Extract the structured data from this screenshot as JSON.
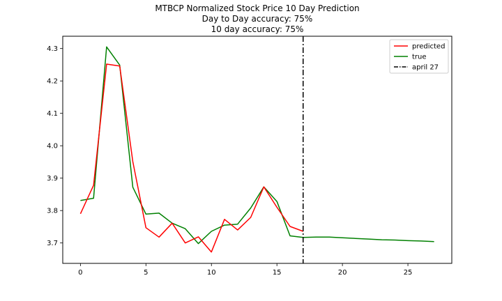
{
  "chart_data": {
    "type": "line",
    "title_lines": [
      "MTBCP Normalized Stock Price 10 Day Prediction",
      "Day to Day accuracy: 75%",
      "10 day accuracy: 75%"
    ],
    "xlabel": "",
    "ylabel": "",
    "xlim": [
      -1.35,
      28.35
    ],
    "ylim": [
      3.637,
      4.338
    ],
    "xticks": [
      0,
      5,
      10,
      15,
      20,
      25
    ],
    "yticks": [
      3.7,
      3.8,
      3.9,
      4.0,
      4.1,
      4.2,
      4.3
    ],
    "grid": false,
    "legend_position": "top-right",
    "series": [
      {
        "name": "predicted",
        "color": "#ff0000",
        "x": [
          0,
          1,
          2,
          3,
          4,
          5,
          6,
          7,
          8,
          9,
          10,
          11,
          12,
          13,
          14,
          15,
          16,
          17
        ],
        "y": [
          3.79,
          3.878,
          4.252,
          4.246,
          3.951,
          3.747,
          3.718,
          3.761,
          3.7,
          3.719,
          3.672,
          3.773,
          3.74,
          3.779,
          3.873,
          3.81,
          3.751,
          3.736
        ]
      },
      {
        "name": "true",
        "color": "#008000",
        "x": [
          0,
          1,
          2,
          3,
          4,
          5,
          6,
          7,
          8,
          9,
          10,
          11,
          12,
          13,
          14,
          15,
          16,
          17,
          18,
          19,
          20,
          21,
          22,
          23,
          24,
          25,
          26,
          27
        ],
        "y": [
          3.831,
          3.838,
          4.305,
          4.249,
          3.872,
          3.789,
          3.792,
          3.761,
          3.744,
          3.698,
          3.736,
          3.755,
          3.758,
          3.808,
          3.873,
          3.828,
          3.722,
          3.717,
          3.718,
          3.718,
          3.716,
          3.714,
          3.712,
          3.71,
          3.709,
          3.707,
          3.706,
          3.704
        ]
      }
    ],
    "vline": {
      "name": "april 27",
      "x": 17,
      "color": "#000000",
      "style": "dashdot"
    }
  }
}
